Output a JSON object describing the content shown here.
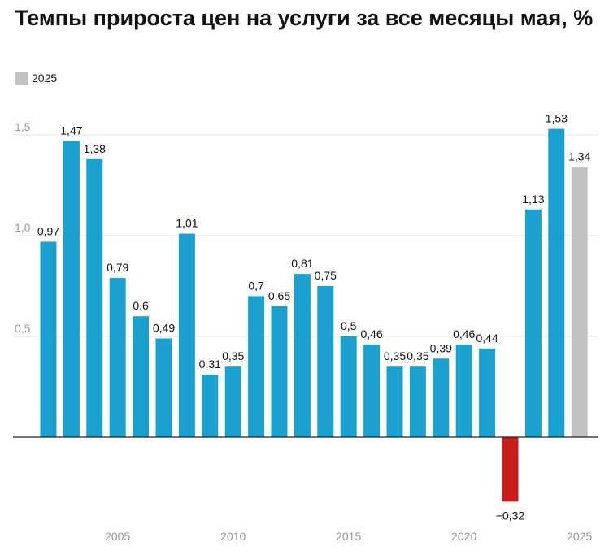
{
  "page": {
    "title": "Темпы прироста цен на услуги за все месяцы мая, %"
  },
  "chart_data": {
    "type": "bar",
    "title": "Темпы прироста цен на услуги за все месяцы мая, %",
    "xlabel": "",
    "ylabel": "",
    "legend": {
      "placement": "top-left",
      "entries": [
        {
          "label": "2025",
          "color": "#c2c2c2"
        }
      ]
    },
    "x": [
      2002,
      2003,
      2004,
      2005,
      2006,
      2007,
      2008,
      2009,
      2010,
      2011,
      2012,
      2013,
      2014,
      2015,
      2016,
      2017,
      2018,
      2019,
      2020,
      2021,
      2022,
      2023,
      2024,
      2025
    ],
    "values": [
      0.97,
      1.47,
      1.38,
      0.79,
      0.6,
      0.49,
      1.01,
      0.31,
      0.35,
      0.7,
      0.65,
      0.81,
      0.75,
      0.5,
      0.46,
      0.35,
      0.35,
      0.39,
      0.46,
      0.44,
      -0.32,
      1.13,
      1.53,
      1.34
    ],
    "data_labels": [
      "0,97",
      "1,47",
      "1,38",
      "0,79",
      "0,6",
      "0,49",
      "1,01",
      "0,31",
      "0,35",
      "0,7",
      "0,65",
      "0,81",
      "0,75",
      "0,5",
      "0,46",
      "0,35",
      "0,35",
      "0,39",
      "0,46",
      "0,44",
      "−0,32",
      "1,13",
      "1,53",
      "1,34"
    ],
    "x_ticks": [
      {
        "value": 2005,
        "label": "2005"
      },
      {
        "value": 2010,
        "label": "2010"
      },
      {
        "value": 2015,
        "label": "2015"
      },
      {
        "value": 2020,
        "label": "2020"
      },
      {
        "value": 2025,
        "label": "2025"
      }
    ],
    "y_ticks": [
      {
        "value": 0.5,
        "label": "0,5"
      },
      {
        "value": 1.0,
        "label": "1,0"
      },
      {
        "value": 1.5,
        "label": "1,5"
      }
    ],
    "ylim": [
      -0.45,
      1.65
    ],
    "grid": true,
    "colors": {
      "positive": "#1ba1cf",
      "negative": "#c81d1d",
      "highlight": "#c2c2c2",
      "grid": "#e6e6e6",
      "zero_line": "#222222"
    },
    "highlight_x": 2025
  }
}
